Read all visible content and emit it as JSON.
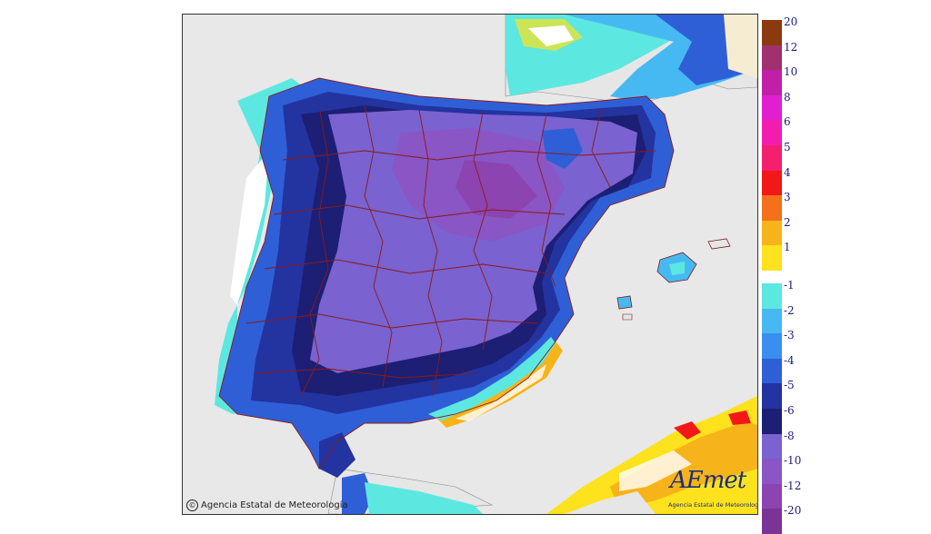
{
  "map": {
    "copyright": "Agencia Estatal de Meteorología",
    "logo": {
      "wordmark": "AEmet",
      "subtitle": "Agencia Estatal de Meteorología"
    }
  },
  "legend": {
    "items": [
      {
        "label": "20",
        "color": "#8b3a0f"
      },
      {
        "label": "12",
        "color": "#a0306e"
      },
      {
        "label": "10",
        "color": "#c21fa8"
      },
      {
        "label": "8",
        "color": "#e11fd0"
      },
      {
        "label": "6",
        "color": "#f21dae"
      },
      {
        "label": "5",
        "color": "#f2206e"
      },
      {
        "label": "4",
        "color": "#f21818"
      },
      {
        "label": "3",
        "color": "#f4701a"
      },
      {
        "label": "2",
        "color": "#f7b31a"
      },
      {
        "label": "1",
        "color": "#fde21d"
      },
      {
        "label": "-1",
        "color": "#5ce8e0"
      },
      {
        "label": "-2",
        "color": "#47b9f2"
      },
      {
        "label": "-3",
        "color": "#3a8ef0"
      },
      {
        "label": "-4",
        "color": "#2f5fd6"
      },
      {
        "label": "-5",
        "color": "#2333a0"
      },
      {
        "label": "-6",
        "color": "#1c1f74"
      },
      {
        "label": "-8",
        "color": "#7a62d0"
      },
      {
        "label": "-10",
        "color": "#8a55c4"
      },
      {
        "label": "-12",
        "color": "#8c44b0"
      },
      {
        "label": "-20",
        "color": "#7a3496"
      }
    ]
  }
}
